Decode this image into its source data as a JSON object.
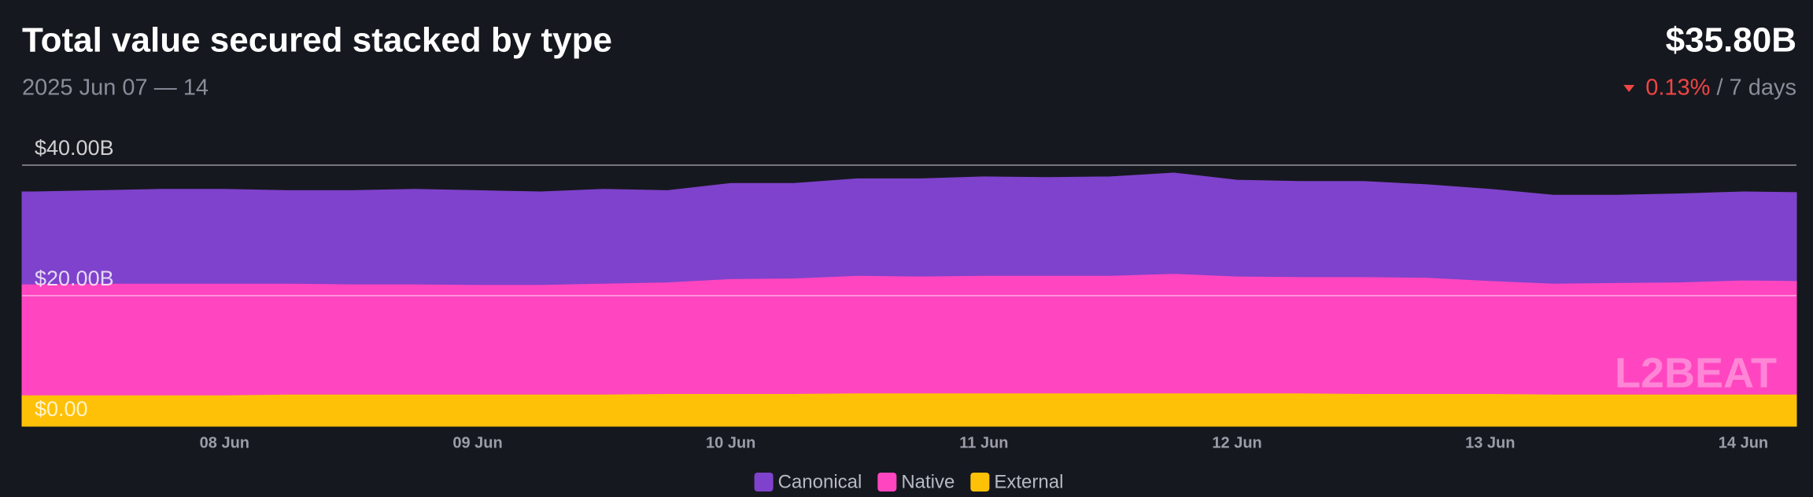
{
  "chart_data": {
    "type": "stacked_area",
    "title": "Total value secured stacked by type",
    "subtitle": "2025 Jun 07 — 14",
    "total": "$35.80B",
    "change": "0.13%",
    "change_period": "/ 7 days",
    "watermark": "L2BEAT",
    "x": [
      7.2,
      7.25,
      7.5,
      7.75,
      8.0,
      8.25,
      8.5,
      8.75,
      9.0,
      9.25,
      9.5,
      9.75,
      10.0,
      10.25,
      10.5,
      10.75,
      11.0,
      11.25,
      11.5,
      11.75,
      12.0,
      12.25,
      12.5,
      12.75,
      13.0,
      13.25,
      13.5,
      13.75,
      14.0,
      14.21
    ],
    "xlim": [
      7.2,
      14.21
    ],
    "xticks": [
      {
        "value": 8,
        "label": "08 Jun"
      },
      {
        "value": 9,
        "label": "09 Jun"
      },
      {
        "value": 10,
        "label": "10 Jun"
      },
      {
        "value": 11,
        "label": "11 Jun"
      },
      {
        "value": 12,
        "label": "12 Jun"
      },
      {
        "value": 13,
        "label": "13 Jun"
      },
      {
        "value": 14,
        "label": "14 Jun"
      }
    ],
    "ylim": [
      0,
      40
    ],
    "yticks": [
      {
        "value": 0,
        "label": "$0.00"
      },
      {
        "value": 20,
        "label": "$20.00B"
      },
      {
        "value": 40,
        "label": "$40.00B"
      }
    ],
    "grid": true,
    "series": [
      {
        "name": "Canonical",
        "color": "#7f42cc",
        "values": [
          14.1,
          14.1,
          14.2,
          14.4,
          14.4,
          14.2,
          14.3,
          14.5,
          14.4,
          14.2,
          14.4,
          14.0,
          14.6,
          14.5,
          14.8,
          14.9,
          15.1,
          15.0,
          15.1,
          15.4,
          14.7,
          14.6,
          14.6,
          14.2,
          14.0,
          13.5,
          13.4,
          13.5,
          13.5,
          13.5
        ]
      },
      {
        "name": "Native",
        "color": "#ff46c0",
        "values": [
          17.0,
          17.0,
          17.1,
          17.1,
          17.1,
          17.0,
          16.9,
          16.9,
          16.8,
          16.8,
          17.0,
          17.1,
          17.6,
          17.7,
          18.0,
          17.9,
          18.0,
          18.0,
          18.0,
          18.3,
          17.9,
          17.8,
          17.9,
          17.8,
          17.3,
          17.0,
          17.1,
          17.2,
          17.5,
          17.4
        ]
      },
      {
        "name": "External",
        "color": "#ffc107",
        "values": [
          4.8,
          4.8,
          4.8,
          4.8,
          4.8,
          4.9,
          4.9,
          4.9,
          4.9,
          4.9,
          4.9,
          5.0,
          5.0,
          5.0,
          5.1,
          5.1,
          5.1,
          5.1,
          5.1,
          5.1,
          5.1,
          5.1,
          5.0,
          5.0,
          5.0,
          4.9,
          4.9,
          4.9,
          4.9,
          4.9
        ]
      }
    ]
  }
}
